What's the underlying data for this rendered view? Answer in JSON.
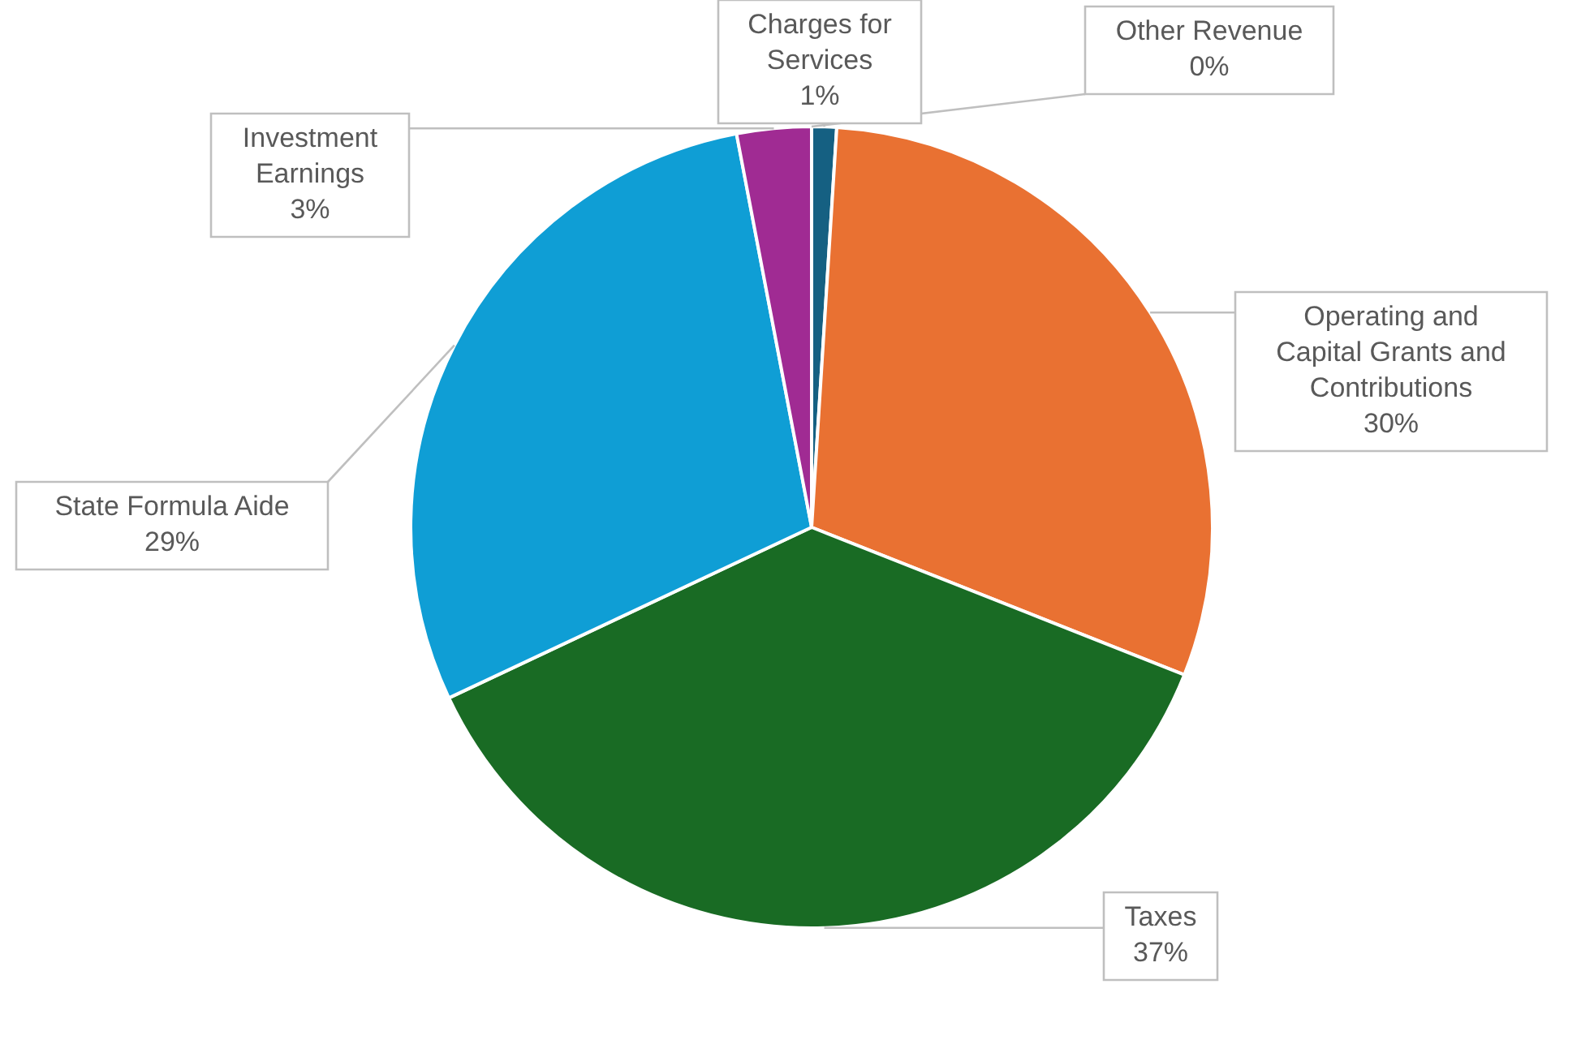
{
  "chart_data": {
    "type": "pie",
    "categories": [
      "Charges for Services",
      "Operating and Capital Grants and Contributions",
      "Taxes",
      "State Formula Aide",
      "Investment Earnings",
      "Other Revenue"
    ],
    "values": [
      1,
      30,
      37,
      29,
      3,
      0
    ],
    "colors": [
      "#156082",
      "#e97132",
      "#196b24",
      "#0f9ed5",
      "#a02b93",
      "#4ea72e"
    ],
    "value_labels": [
      "1%",
      "30%",
      "37%",
      "29%",
      "3%",
      "0%"
    ]
  }
}
